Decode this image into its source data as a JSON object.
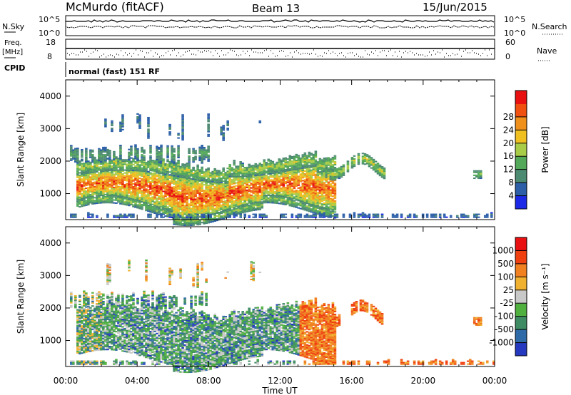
{
  "header": {
    "station": "McMurdo (fitACF)",
    "beam": "Beam 13",
    "date": "15/Jun/2015"
  },
  "top_strip": {
    "nsky_label": "N.Sky",
    "nsky_hi": "10^5",
    "nsky_lo": "10^0",
    "nsearch_label": "N.Search",
    "nsearch_hi": "10^5",
    "nsearch_lo": "10^0",
    "freq_label": "Freq.",
    "freq_unit": "[MHz]",
    "freq_hi": "18",
    "freq_lo": "8",
    "nave_label": "Nave",
    "nave_hi": "60",
    "nave_lo": "0",
    "cpid_label": "CPID",
    "cpid_text": "normal (fast) 151 RF"
  },
  "chart_data": [
    {
      "type": "heatmap",
      "panel": "power",
      "ylabel": "Slant Range [km]",
      "ylim": [
        200,
        4500
      ],
      "yticks": [
        "1000",
        "2000",
        "3000",
        "4000"
      ],
      "xlim_hours": [
        0,
        24
      ],
      "colorbar": {
        "label": "Power [dB]",
        "ticks": [
          "4",
          "8",
          "12",
          "16",
          "20",
          "24",
          "28"
        ],
        "range": [
          0,
          32
        ],
        "colors": [
          "#1c2ae8",
          "#2c5fa8",
          "#4d8a72",
          "#54a85a",
          "#a8cc48",
          "#f0c020",
          "#f0901c",
          "#f05010",
          "#e81010"
        ]
      }
    },
    {
      "type": "heatmap",
      "panel": "velocity",
      "xlabel": "Time UT",
      "ylabel": "Slant Range [km]",
      "ylim": [
        200,
        4500
      ],
      "yticks": [
        "1000",
        "2000",
        "3000",
        "4000"
      ],
      "xticks": [
        "00:00",
        "04:00",
        "08:00",
        "12:00",
        "16:00",
        "20:00",
        "00:00"
      ],
      "xlim_hours": [
        0,
        24
      ],
      "colorbar": {
        "label": "Velocity [m s⁻¹]",
        "ticks": [
          "1000",
          "500",
          "100",
          "25",
          "-25",
          "-100",
          "-500",
          "-1000"
        ],
        "colors": [
          "#2438c0",
          "#2e6aa8",
          "#3f8c64",
          "#4fb040",
          "#c8c8c8",
          "#f0b030",
          "#f08020",
          "#f04010",
          "#e81010"
        ]
      }
    }
  ]
}
